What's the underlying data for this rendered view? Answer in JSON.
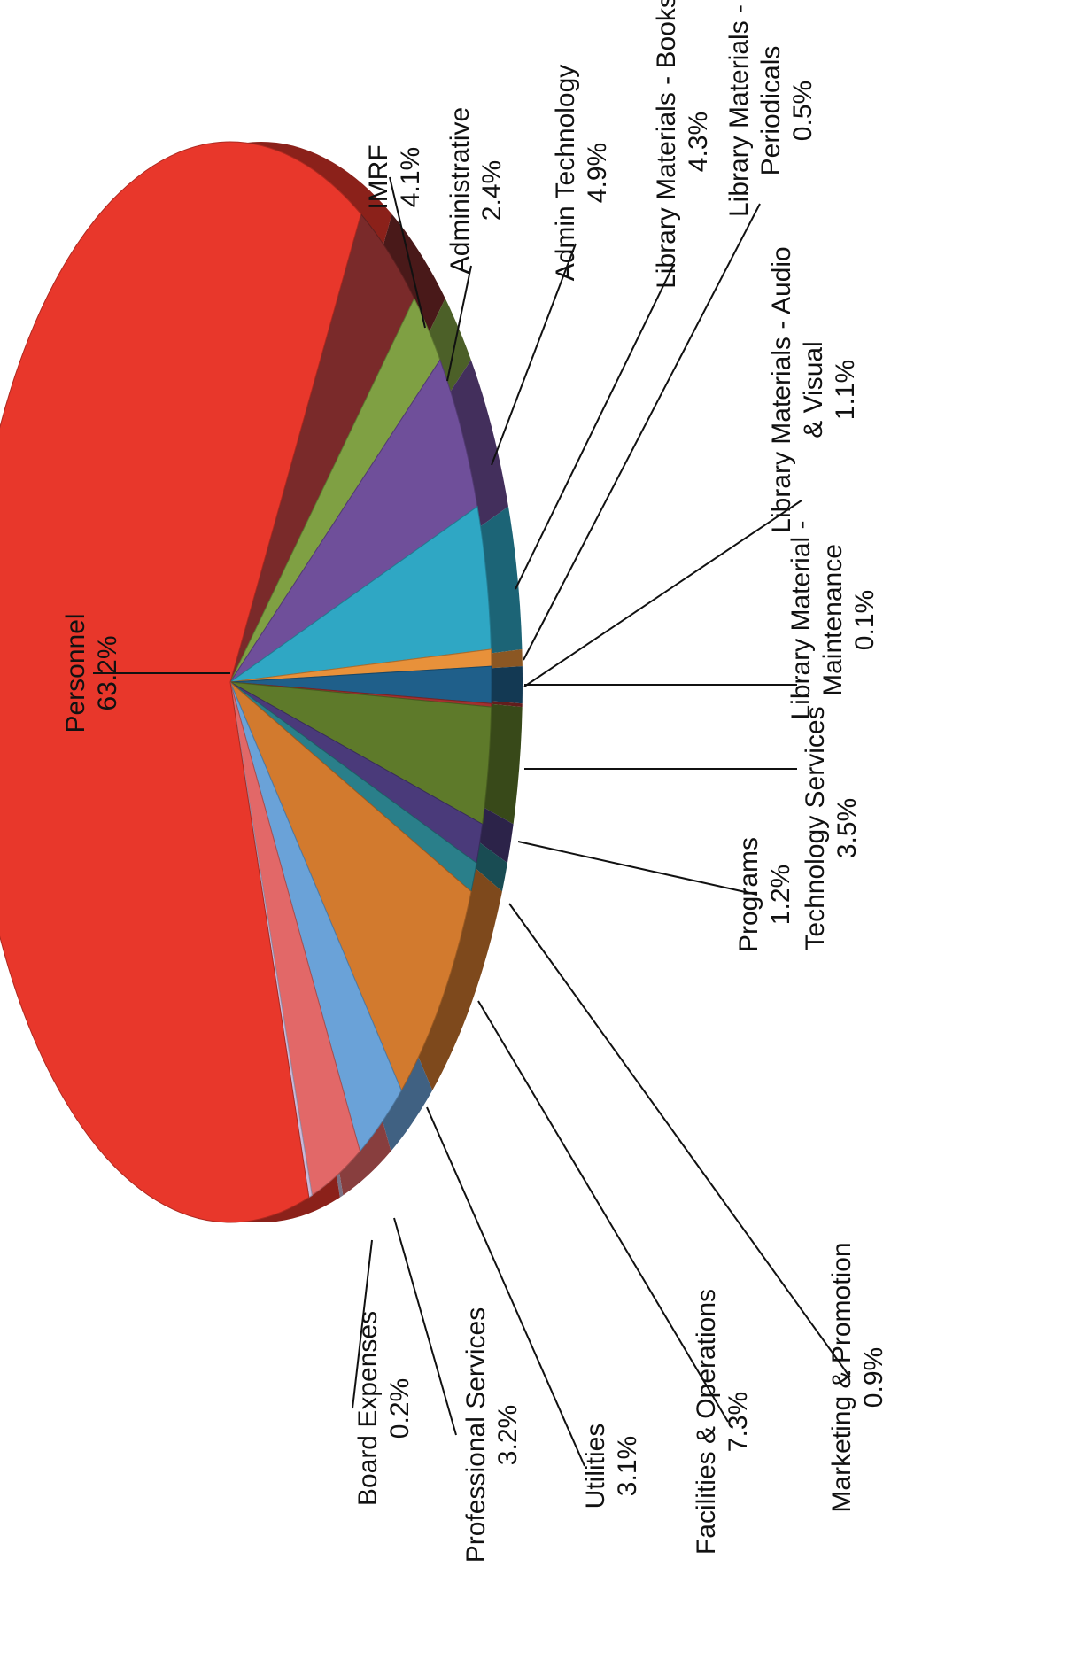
{
  "chart_data": {
    "type": "pie",
    "title": "",
    "style": "3d-exploded-rotated",
    "slices": [
      {
        "label": "Personnel",
        "value": 63.2,
        "pct": "63.2%",
        "color": "#e8372b"
      },
      {
        "label": "IMRF",
        "value": 4.1,
        "pct": "4.1%",
        "color": "#7a2a2a"
      },
      {
        "label": "Administrative",
        "value": 2.4,
        "pct": "2.4%",
        "color": "#7fa043"
      },
      {
        "label": "Admin Technology",
        "value": 4.9,
        "pct": "4.9%",
        "color": "#6f4f9a"
      },
      {
        "label": "Library Materials - Books",
        "value": 4.3,
        "pct": "4.3%",
        "color": "#2fa7c4"
      },
      {
        "label": "Library Materials - Periodicals",
        "value": 0.5,
        "pct": "0.5%",
        "color": "#e8913a"
      },
      {
        "label": "Library Materials - Audio & Visual",
        "value": 1.1,
        "pct": "1.1%",
        "color": "#1f5f8a"
      },
      {
        "label": "Library Material - Maintenance",
        "value": 0.1,
        "pct": "0.1%",
        "color": "#a33030"
      },
      {
        "label": "Technology Services",
        "value": 3.5,
        "pct": "3.5%",
        "color": "#5e7a2a"
      },
      {
        "label": "Programs",
        "value": 1.2,
        "pct": "1.2%",
        "color": "#4a3a7a"
      },
      {
        "label": "Marketing & Promotion",
        "value": 0.9,
        "pct": "0.9%",
        "color": "#2a7f8a"
      },
      {
        "label": "Facilities & Operations",
        "value": 7.3,
        "pct": "7.3%",
        "color": "#d27a2e"
      },
      {
        "label": "Utilities",
        "value": 3.1,
        "pct": "3.1%",
        "color": "#6aa2d8"
      },
      {
        "label": "Professional Services",
        "value": 3.2,
        "pct": "3.2%",
        "color": "#e26868"
      },
      {
        "label": "Board Expenses",
        "value": 0.2,
        "pct": "0.2%",
        "color": "#c9b9d9"
      }
    ]
  }
}
